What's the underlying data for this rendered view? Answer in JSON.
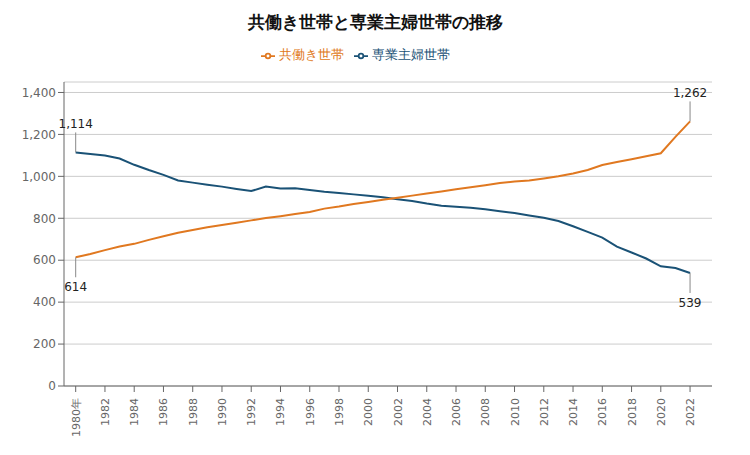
{
  "chart_data": {
    "type": "line",
    "title": "共働き世帯と専業主婦世帯の推移",
    "x": [
      1980,
      1981,
      1982,
      1983,
      1984,
      1985,
      1986,
      1987,
      1988,
      1989,
      1990,
      1991,
      1992,
      1993,
      1994,
      1995,
      1996,
      1997,
      1998,
      1999,
      2000,
      2001,
      2002,
      2003,
      2004,
      2005,
      2006,
      2007,
      2008,
      2009,
      2010,
      2011,
      2012,
      2013,
      2014,
      2015,
      2016,
      2017,
      2018,
      2019,
      2020,
      2021,
      2022
    ],
    "series": [
      {
        "name": "専業主婦世帯",
        "color": "#1a5276",
        "values": [
          1114,
          1107,
          1099,
          1085,
          1055,
          1030,
          1007,
          980,
          970,
          960,
          951,
          940,
          930,
          951,
          942,
          943,
          935,
          927,
          921,
          914,
          907,
          900,
          891,
          882,
          870,
          860,
          855,
          850,
          843,
          834,
          825,
          813,
          802,
          787,
          762,
          735,
          708,
          665,
          637,
          608,
          571,
          563,
          539
        ]
      },
      {
        "name": "共働き世帯",
        "color": "#e07820",
        "values": [
          614,
          630,
          648,
          665,
          678,
          697,
          714,
          731,
          744,
          757,
          768,
          779,
          790,
          801,
          810,
          820,
          830,
          846,
          856,
          868,
          878,
          888,
          898,
          908,
          918,
          928,
          938,
          948,
          958,
          968,
          975,
          980,
          990,
          1000,
          1014,
          1030,
          1054,
          1068,
          1082,
          1096,
          1110,
          1188,
          1262
        ]
      }
    ],
    "xlim": [
      1979.2,
      2023.5
    ],
    "xticks": [
      {
        "value": 1980,
        "label": "1980年"
      },
      1982,
      1984,
      1986,
      1988,
      1990,
      1992,
      1994,
      1996,
      1998,
      2000,
      2002,
      2004,
      2006,
      2008,
      2010,
      2012,
      2014,
      2016,
      2018,
      2020,
      2022
    ],
    "ylim": [
      0,
      1450
    ],
    "yticks": [
      0,
      200,
      400,
      600,
      800,
      {
        "value": 1000,
        "label": "1,000"
      },
      {
        "value": 1200,
        "label": "1,200"
      },
      {
        "value": 1400,
        "label": "1,400"
      }
    ],
    "grid": true,
    "legend": "top",
    "annotations": [
      {
        "x": 1980,
        "y": 1114,
        "text": "1,114"
      },
      {
        "x": 1980,
        "y": 614,
        "text": "614"
      },
      {
        "x": 2022,
        "y": 1262,
        "text": "1,262"
      },
      {
        "x": 2022,
        "y": 539,
        "text": "539"
      }
    ]
  }
}
